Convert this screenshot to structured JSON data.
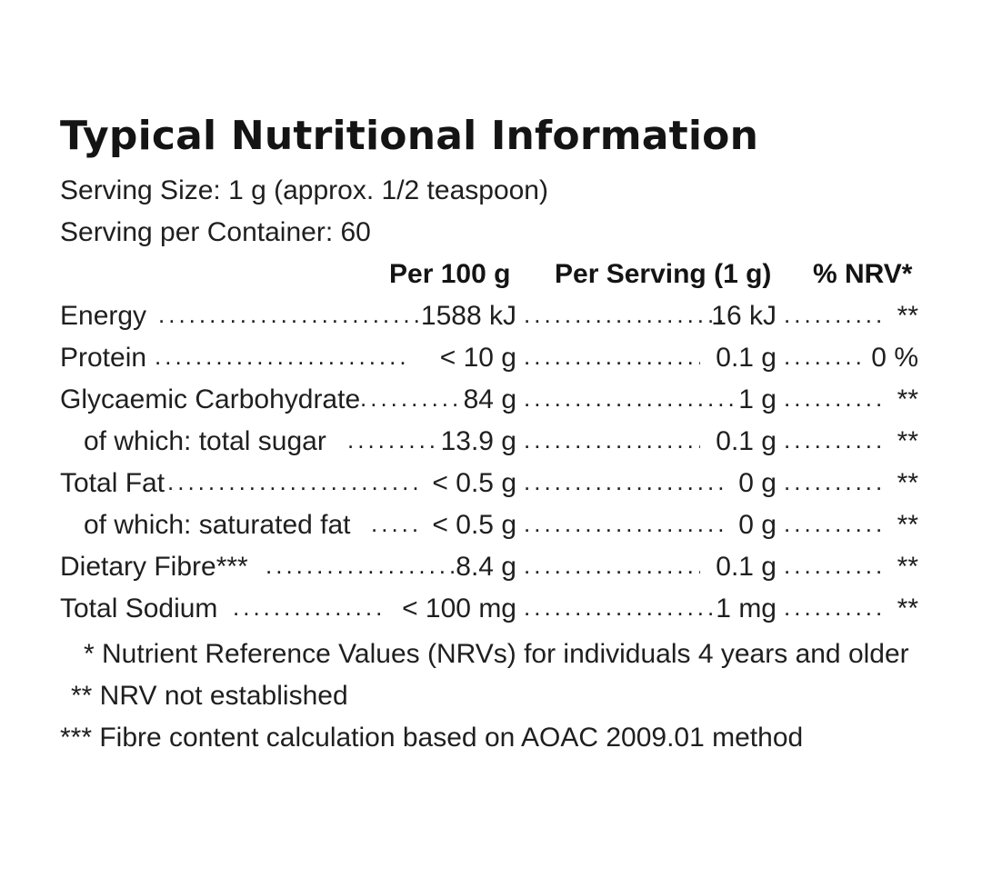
{
  "title": "Typical Nutritional Information",
  "serving_size": "Serving Size: 1 g (approx. 1/2 teaspoon)",
  "servings_per_container": "Serving per Container: 60",
  "columns": {
    "per100": "Per 100 g",
    "per_serving": "Per Serving (1 g)",
    "nrv": "% NRV*"
  },
  "rows": [
    {
      "name": "Energy",
      "per100": "1588 kJ",
      "per_serving": "16 kJ",
      "nrv": "**"
    },
    {
      "name": "Protein",
      "per100": "< 10 g",
      "per_serving": "0.1 g",
      "nrv": "0 %"
    },
    {
      "name": "Glycaemic Carbohydrate",
      "per100": "84 g",
      "per_serving": "1 g",
      "nrv": "**"
    },
    {
      "name": "of which: total sugar",
      "per100": "13.9 g",
      "per_serving": "0.1 g",
      "nrv": "**"
    },
    {
      "name": "Total Fat",
      "per100": "< 0.5 g",
      "per_serving": "0 g",
      "nrv": "**"
    },
    {
      "name": "of which: saturated fat",
      "per100": "< 0.5 g",
      "per_serving": "0 g",
      "nrv": "**"
    },
    {
      "name": "Dietary Fibre***",
      "per100": "8.4 g",
      "per_serving": "0.1 g",
      "nrv": "**"
    },
    {
      "name": "Total Sodium",
      "per100": "< 100 mg",
      "per_serving": "1 mg",
      "nrv": "**"
    }
  ],
  "footnotes": {
    "nrv": "* Nutrient Reference Values (NRVs) for individuals 4 years and older",
    "not_established": "** NRV not established",
    "fibre": "*** Fibre content calculation based on AOAC 2009.01 method"
  }
}
